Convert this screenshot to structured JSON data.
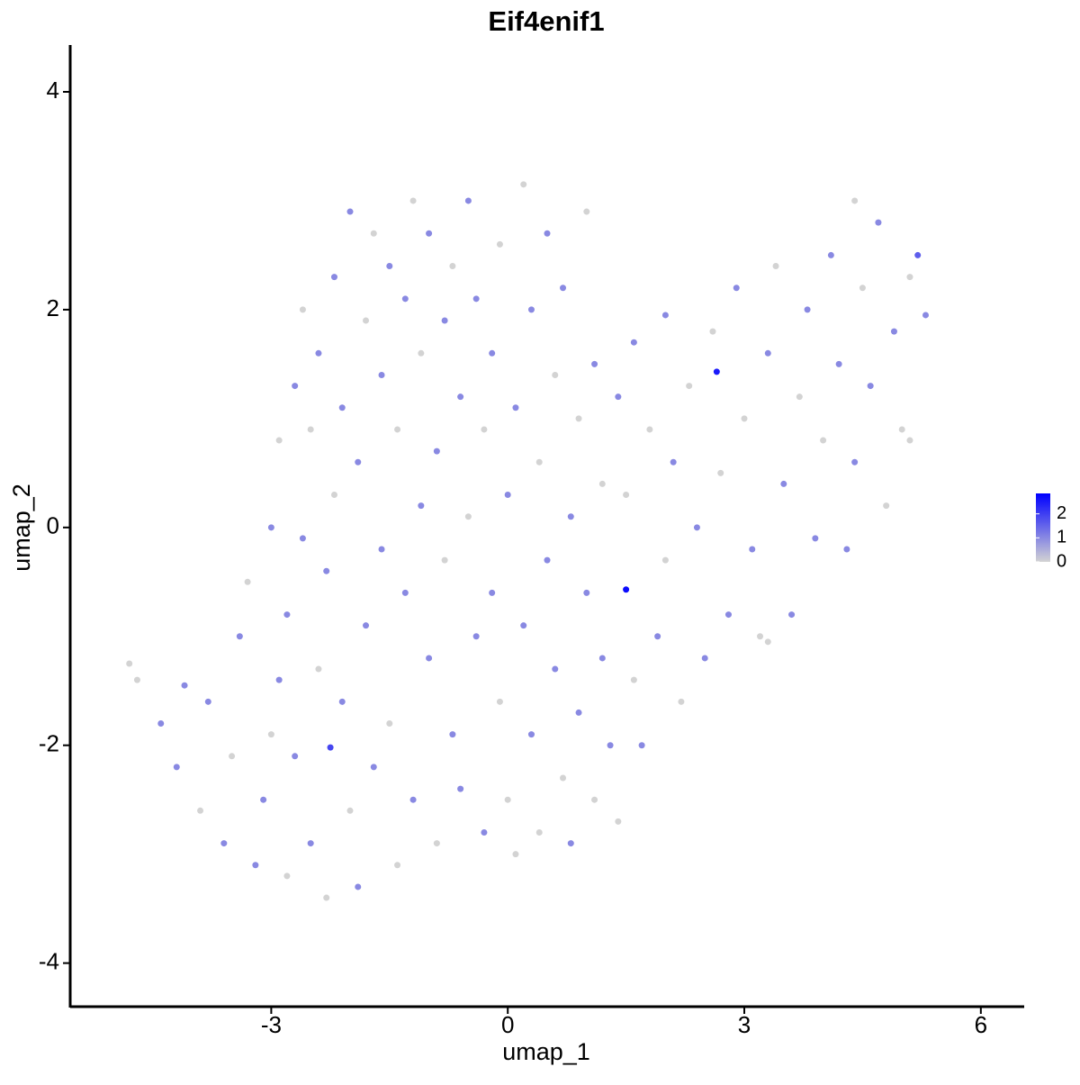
{
  "chart_data": {
    "type": "scatter",
    "title": "Eif4enif1",
    "xlabel": "umap_1",
    "ylabel": "umap_2",
    "xlim": [
      -5.55,
      6.55
    ],
    "ylim": [
      -4.4,
      4.43
    ],
    "xticks": [
      -3,
      0,
      3,
      6
    ],
    "yticks": [
      -4,
      -2,
      0,
      2,
      4
    ],
    "colors": [
      "#d3d3d3",
      "#0000ff"
    ],
    "colorlim": [
      0,
      2.85
    ],
    "colorticks": [
      0,
      1,
      2
    ],
    "x": [
      -4.8,
      -4.7,
      -4.4,
      -4.2,
      -4.1,
      -3.9,
      -3.8,
      -3.6,
      -3.5,
      -3.4,
      -3.3,
      -3.2,
      -3.1,
      -3.0,
      -3.0,
      -2.9,
      -2.9,
      -2.8,
      -2.8,
      -2.7,
      -2.7,
      -2.6,
      -2.6,
      -2.5,
      -2.5,
      -2.4,
      -2.4,
      -2.3,
      -2.3,
      -2.25,
      -2.2,
      -2.2,
      -2.1,
      -2.1,
      -2.0,
      -2.0,
      -1.9,
      -1.9,
      -1.8,
      -1.8,
      -1.7,
      -1.7,
      -1.6,
      -1.6,
      -1.5,
      -1.5,
      -1.4,
      -1.4,
      -1.3,
      -1.3,
      -1.2,
      -1.2,
      -1.1,
      -1.1,
      -1.0,
      -1.0,
      -0.9,
      -0.9,
      -0.8,
      -0.8,
      -0.7,
      -0.7,
      -0.6,
      -0.6,
      -0.5,
      -0.5,
      -0.4,
      -0.4,
      -0.3,
      -0.3,
      -0.2,
      -0.2,
      -0.1,
      -0.1,
      0.0,
      0.0,
      0.1,
      0.1,
      0.2,
      0.2,
      0.3,
      0.3,
      0.4,
      0.4,
      0.5,
      0.5,
      0.6,
      0.6,
      0.7,
      0.7,
      0.8,
      0.8,
      0.9,
      0.9,
      1.0,
      1.0,
      1.1,
      1.1,
      1.2,
      1.2,
      1.3,
      1.4,
      1.5,
      1.5,
      1.6,
      1.6,
      1.7,
      1.8,
      1.9,
      2.0,
      2.0,
      2.1,
      2.2,
      2.3,
      2.4,
      2.5,
      2.6,
      2.65,
      2.7,
      2.8,
      2.9,
      3.0,
      3.1,
      3.2,
      3.3,
      3.4,
      3.5,
      3.6,
      3.7,
      3.8,
      3.9,
      4.0,
      4.1,
      4.2,
      4.3,
      4.4,
      4.4,
      4.5,
      4.6,
      4.7,
      4.8,
      4.9,
      5.0,
      5.1,
      5.2,
      5.3,
      5.1,
      3.3,
      1.4
    ],
    "y": [
      -1.25,
      -1.4,
      -1.8,
      -2.2,
      -1.45,
      -2.6,
      -1.6,
      -2.9,
      -2.1,
      -1.0,
      -0.5,
      -3.1,
      -2.5,
      -1.9,
      0.0,
      0.8,
      -1.4,
      -3.2,
      -0.8,
      1.3,
      -2.1,
      2.0,
      -0.1,
      -2.9,
      0.9,
      1.6,
      -1.3,
      -3.4,
      -0.4,
      -2.02,
      2.3,
      0.3,
      -1.6,
      1.1,
      2.9,
      -2.6,
      -3.3,
      0.6,
      1.9,
      -0.9,
      2.7,
      -2.2,
      -0.2,
      1.4,
      2.4,
      -1.8,
      -3.1,
      0.9,
      -0.6,
      2.1,
      -2.5,
      3.0,
      0.2,
      1.6,
      -1.2,
      2.7,
      -2.9,
      0.7,
      1.9,
      -0.3,
      -1.9,
      2.4,
      1.2,
      -2.4,
      3.0,
      0.1,
      -1.0,
      2.1,
      -2.8,
      0.9,
      1.6,
      -0.6,
      2.6,
      -1.6,
      0.3,
      -2.5,
      1.1,
      -3.0,
      3.15,
      -0.9,
      2.0,
      -1.9,
      0.6,
      -2.8,
      2.7,
      -0.3,
      1.4,
      -1.3,
      -2.3,
      2.2,
      0.1,
      -2.9,
      1.0,
      -1.7,
      2.9,
      -0.6,
      1.5,
      -2.5,
      0.4,
      -1.2,
      -2.0,
      1.2,
      -0.57,
      0.3,
      1.7,
      -1.4,
      -2.0,
      0.9,
      -1.0,
      1.95,
      -0.3,
      0.6,
      -1.6,
      1.3,
      0.0,
      -1.2,
      1.8,
      1.43,
      0.5,
      -0.8,
      2.2,
      1.0,
      -0.2,
      -1.0,
      1.6,
      2.4,
      0.4,
      -0.8,
      1.2,
      2.0,
      -0.1,
      0.8,
      2.5,
      1.5,
      -0.2,
      3.0,
      0.6,
      2.2,
      1.3,
      2.8,
      0.2,
      1.8,
      0.9,
      2.3,
      2.5,
      1.95,
      0.8,
      -1.05,
      -2.7
    ],
    "values": [
      0,
      0,
      1,
      1,
      1,
      0,
      1,
      1,
      0,
      1,
      0,
      1,
      1,
      0,
      1,
      0,
      1,
      0,
      1,
      1,
      1,
      0,
      1,
      1,
      0,
      1,
      0,
      0,
      1,
      1.9,
      1,
      0,
      1,
      1,
      1,
      0,
      1,
      1,
      0,
      1,
      0,
      1,
      1,
      1,
      1,
      0,
      0,
      0,
      1,
      1,
      1,
      0,
      1,
      0,
      1,
      1,
      0,
      1,
      1,
      0,
      1,
      0,
      1,
      1,
      1,
      0,
      1,
      1,
      1,
      0,
      1,
      1,
      0,
      0,
      1,
      0,
      1,
      0,
      0,
      1,
      1,
      1,
      0,
      0,
      1,
      1,
      0,
      1,
      0,
      1,
      1,
      1,
      0,
      1,
      0,
      1,
      1,
      0,
      0,
      1,
      1,
      1,
      2.7,
      0,
      1,
      0,
      1,
      0,
      1,
      1,
      0,
      1,
      0,
      0,
      1,
      1,
      0,
      2.5,
      0,
      1,
      1,
      0,
      1,
      0,
      1,
      0,
      1,
      1,
      0,
      1,
      1,
      0,
      1,
      1,
      1,
      0,
      1,
      0,
      1,
      1,
      0,
      1,
      0,
      0,
      1.6,
      1,
      0,
      0,
      0
    ]
  }
}
